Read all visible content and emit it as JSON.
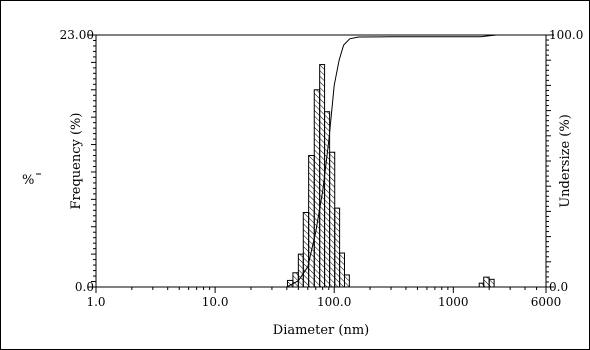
{
  "chart_data": {
    "type": "bar",
    "xlabel": "Diameter (nm)",
    "ylabel_left": "Frequency (%)",
    "ylabel_right": "Undersize (%)",
    "side_label": "%",
    "x_scale": "log",
    "xlim": [
      1.0,
      6000
    ],
    "x_ticks": [
      {
        "value": 1.0,
        "label": "1.0"
      },
      {
        "value": 10.0,
        "label": "10.0"
      },
      {
        "value": 100.0,
        "label": "100.0"
      },
      {
        "value": 1000,
        "label": "1000"
      },
      {
        "value": 6000,
        "label": "6000"
      }
    ],
    "ylim_left": [
      0,
      23.0
    ],
    "ylim_right": [
      0,
      100
    ],
    "y_left_ticks": [
      {
        "value": 0,
        "label": "0.0"
      },
      {
        "value": 23.0,
        "label": "23.00"
      }
    ],
    "y_right_ticks": [
      {
        "value": 0,
        "label": "0.0"
      },
      {
        "value": 100,
        "label": "100.0"
      }
    ],
    "frequency": [
      {
        "x0": 40.5,
        "x1": 45,
        "y": 0.6
      },
      {
        "x0": 45,
        "x1": 50,
        "y": 1.3
      },
      {
        "x0": 50,
        "x1": 55,
        "y": 3.0
      },
      {
        "x0": 55,
        "x1": 61,
        "y": 6.8
      },
      {
        "x0": 61,
        "x1": 68,
        "y": 12.0
      },
      {
        "x0": 68,
        "x1": 75.5,
        "y": 18.0
      },
      {
        "x0": 75.5,
        "x1": 83,
        "y": 20.3
      },
      {
        "x0": 83,
        "x1": 91.5,
        "y": 16.0
      },
      {
        "x0": 91.5,
        "x1": 101,
        "y": 12.3
      },
      {
        "x0": 101,
        "x1": 111,
        "y": 7.2
      },
      {
        "x0": 111,
        "x1": 122,
        "y": 3.1
      },
      {
        "x0": 122,
        "x1": 134,
        "y": 1.1
      },
      {
        "x0": 1650,
        "x1": 1800,
        "y": 0.35
      },
      {
        "x0": 1800,
        "x1": 2000,
        "y": 0.9
      },
      {
        "x0": 2000,
        "x1": 2200,
        "y": 0.7
      }
    ],
    "undersize": [
      {
        "x": 40,
        "y": 0
      },
      {
        "x": 50,
        "y": 2.5
      },
      {
        "x": 60,
        "y": 8
      },
      {
        "x": 70,
        "y": 22
      },
      {
        "x": 80,
        "y": 38
      },
      {
        "x": 90,
        "y": 58
      },
      {
        "x": 100,
        "y": 80
      },
      {
        "x": 110,
        "y": 90
      },
      {
        "x": 120,
        "y": 96
      },
      {
        "x": 135,
        "y": 98.5
      },
      {
        "x": 160,
        "y": 99.2
      },
      {
        "x": 300,
        "y": 99.3
      },
      {
        "x": 1700,
        "y": 99.3
      },
      {
        "x": 2000,
        "y": 99.7
      },
      {
        "x": 2300,
        "y": 100
      }
    ]
  }
}
